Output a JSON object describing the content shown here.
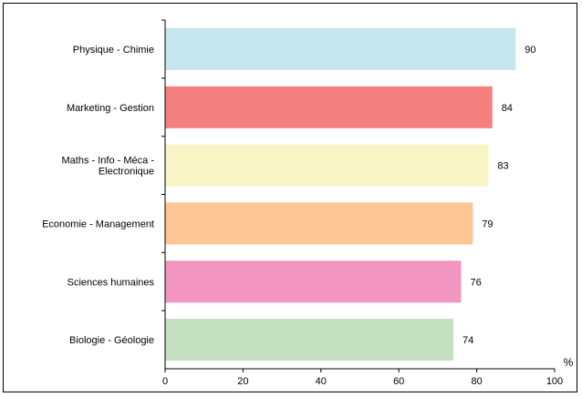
{
  "chart_data": {
    "type": "bar",
    "orientation": "horizontal",
    "categories": [
      [
        "Physique - Chimie"
      ],
      [
        "Marketing - Gestion"
      ],
      [
        "Maths - Info - Méca -",
        "Electronique"
      ],
      [
        "Economie - Management"
      ],
      [
        "Sciences humaines"
      ],
      [
        "Biologie - Géologie"
      ]
    ],
    "values": [
      90,
      84,
      83,
      79,
      76,
      74
    ],
    "value_labels": [
      "90",
      "84",
      "83",
      "79",
      "76",
      "74"
    ],
    "colors": [
      "#c5e6ec",
      "#f47f7f",
      "#f7f5c6",
      "#fec594",
      "#f395c1",
      "#c4e0c1"
    ],
    "xlim": [
      0,
      100
    ],
    "x_ticks": [
      0,
      20,
      40,
      60,
      80,
      100
    ],
    "x_tick_labels": [
      "0",
      "20",
      "40",
      "60",
      "80",
      "100"
    ],
    "x_unit": "%",
    "grid": false,
    "legend": "none"
  }
}
